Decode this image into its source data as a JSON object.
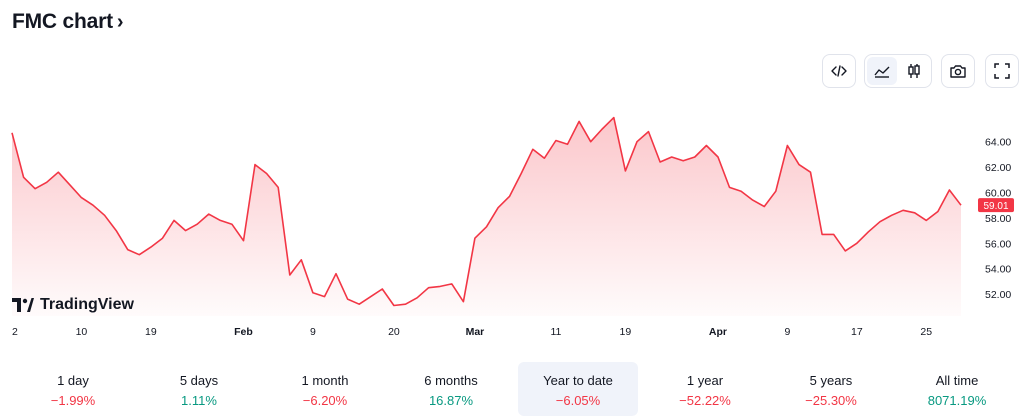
{
  "header": {
    "title": "FMC chart",
    "chevron": "›"
  },
  "toolbar": {
    "buttons": [
      {
        "name": "embed-code-button",
        "icon": "code-icon"
      },
      {
        "name": "area-chart-button",
        "icon": "area-chart-icon",
        "active": true
      },
      {
        "name": "candles-chart-button",
        "icon": "candles-icon"
      },
      {
        "name": "snapshot-button",
        "icon": "camera-icon"
      },
      {
        "name": "fullscreen-button",
        "icon": "fullscreen-icon"
      }
    ]
  },
  "watermark": {
    "text": "TradingView"
  },
  "chart_data": {
    "type": "area",
    "series": [
      {
        "values": [
          64.7,
          61.2,
          60.3,
          60.8,
          61.6,
          60.6,
          59.6,
          59.0,
          58.2,
          57.0,
          55.5,
          55.1,
          55.7,
          56.4,
          57.8,
          57.0,
          57.5,
          58.3,
          57.8,
          57.5,
          56.2,
          62.2,
          61.5,
          60.4,
          53.5,
          54.7,
          52.1,
          51.8,
          53.6,
          51.6,
          51.2,
          51.8,
          52.4,
          51.1,
          51.2,
          51.7,
          52.5,
          52.6,
          52.8,
          51.4,
          56.4,
          57.3,
          58.8,
          59.7,
          61.5,
          63.4,
          62.7,
          64.1,
          63.8,
          65.6,
          64.0,
          65.0,
          65.9,
          61.7,
          64.0,
          64.8,
          62.4,
          62.8,
          62.5,
          62.8,
          63.7,
          62.8,
          60.4,
          60.1,
          59.4,
          58.9,
          60.1,
          63.7,
          62.2,
          61.6,
          56.7,
          56.7,
          55.4,
          56.0,
          56.9,
          57.7,
          58.2,
          58.6,
          58.4,
          57.8,
          58.5,
          60.2,
          59.0
        ]
      }
    ],
    "y_ticks": [
      "52.00",
      "54.00",
      "56.00",
      "58.00",
      "60.00",
      "62.00",
      "64.00"
    ],
    "ylim": [
      50.9,
      66.5
    ],
    "x_ticks": [
      {
        "label": "2",
        "i": 0,
        "bold": false
      },
      {
        "label": "10",
        "i": 6,
        "bold": false
      },
      {
        "label": "19",
        "i": 12,
        "bold": false
      },
      {
        "label": "Feb",
        "i": 20,
        "bold": true
      },
      {
        "label": "9",
        "i": 26,
        "bold": false
      },
      {
        "label": "20",
        "i": 33,
        "bold": false
      },
      {
        "label": "Mar",
        "i": 40,
        "bold": true
      },
      {
        "label": "11",
        "i": 47,
        "bold": false
      },
      {
        "label": "19",
        "i": 53,
        "bold": false
      },
      {
        "label": "Apr",
        "i": 61,
        "bold": true
      },
      {
        "label": "9",
        "i": 67,
        "bold": false
      },
      {
        "label": "17",
        "i": 73,
        "bold": false
      },
      {
        "label": "25",
        "i": 79,
        "bold": false
      }
    ],
    "last_price": "59.01",
    "line_color": "#f23645",
    "grid": false
  },
  "periods": [
    {
      "label": "1 day",
      "value": "−1.99%",
      "sign": "neg"
    },
    {
      "label": "5 days",
      "value": "1.11%",
      "sign": "pos"
    },
    {
      "label": "1 month",
      "value": "−6.20%",
      "sign": "neg"
    },
    {
      "label": "6 months",
      "value": "16.87%",
      "sign": "pos"
    },
    {
      "label": "Year to date",
      "value": "−6.05%",
      "sign": "neg",
      "active": true
    },
    {
      "label": "1 year",
      "value": "−52.22%",
      "sign": "neg"
    },
    {
      "label": "5 years",
      "value": "−25.30%",
      "sign": "neg"
    },
    {
      "label": "All time",
      "value": "8071.19%",
      "sign": "pos"
    }
  ]
}
